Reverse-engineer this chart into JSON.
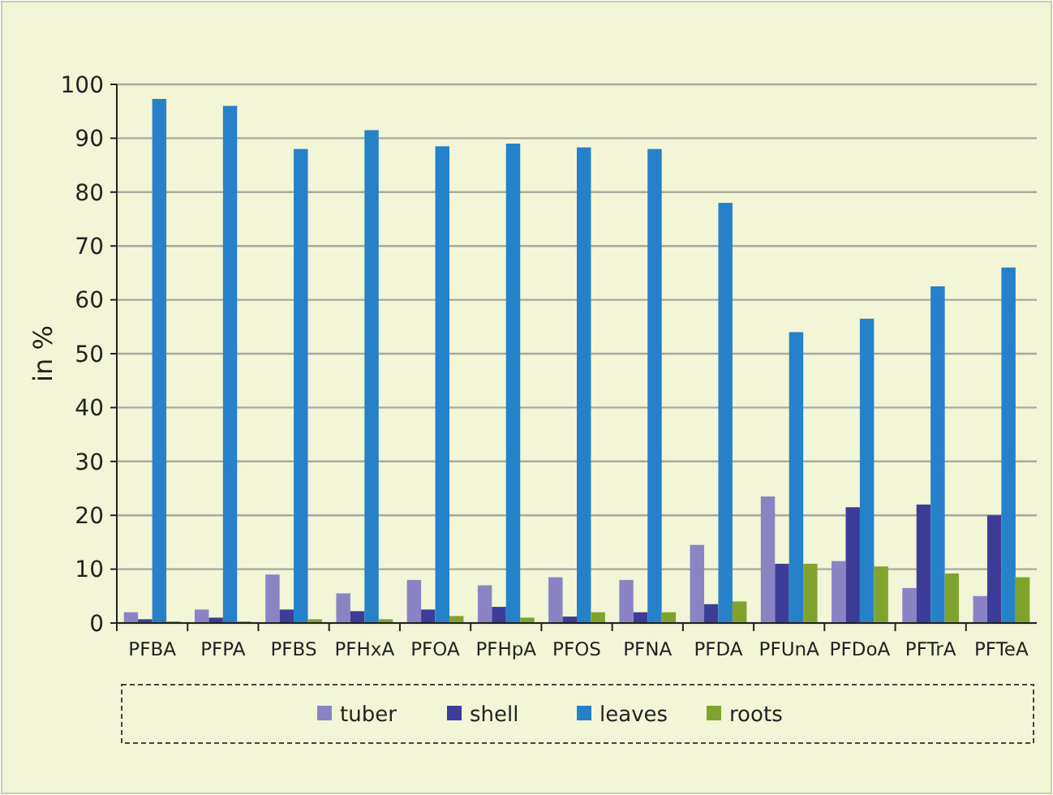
{
  "chart_data": {
    "type": "bar",
    "ylabel": "in %",
    "categories": [
      "PFBA",
      "PFPA",
      "PFBS",
      "PFHxA",
      "PFOA",
      "PFHpA",
      "PFOS",
      "PFNA",
      "PFDA",
      "PFUnA",
      "PFDoA",
      "PFTrA",
      "PFTeA"
    ],
    "series": [
      {
        "name": "tuber",
        "color": "#8a84c4",
        "values": [
          2,
          2.5,
          9,
          5.5,
          8,
          7,
          8.5,
          8,
          14.5,
          23.5,
          11.5,
          6.5,
          5
        ]
      },
      {
        "name": "shell",
        "color": "#3d3d99",
        "values": [
          0.7,
          1,
          2.5,
          2.2,
          2.5,
          3,
          1.2,
          2,
          3.5,
          11,
          21.5,
          22,
          20
        ]
      },
      {
        "name": "leaves",
        "color": "#2581c9",
        "values": [
          97.3,
          96,
          88,
          91.5,
          88.5,
          89,
          88.3,
          88,
          78,
          54,
          56.5,
          62.5,
          66
        ]
      },
      {
        "name": "roots",
        "color": "#7fa32c",
        "values": [
          0.3,
          0.3,
          0.7,
          0.7,
          1.3,
          1,
          2,
          2,
          4,
          11,
          10.5,
          9.2,
          8.5
        ]
      }
    ],
    "ylim": [
      0,
      100
    ],
    "yticks": [
      0,
      10,
      20,
      30,
      40,
      50,
      60,
      70,
      80,
      90,
      100
    ],
    "grid": "y",
    "legend": "bottom"
  }
}
